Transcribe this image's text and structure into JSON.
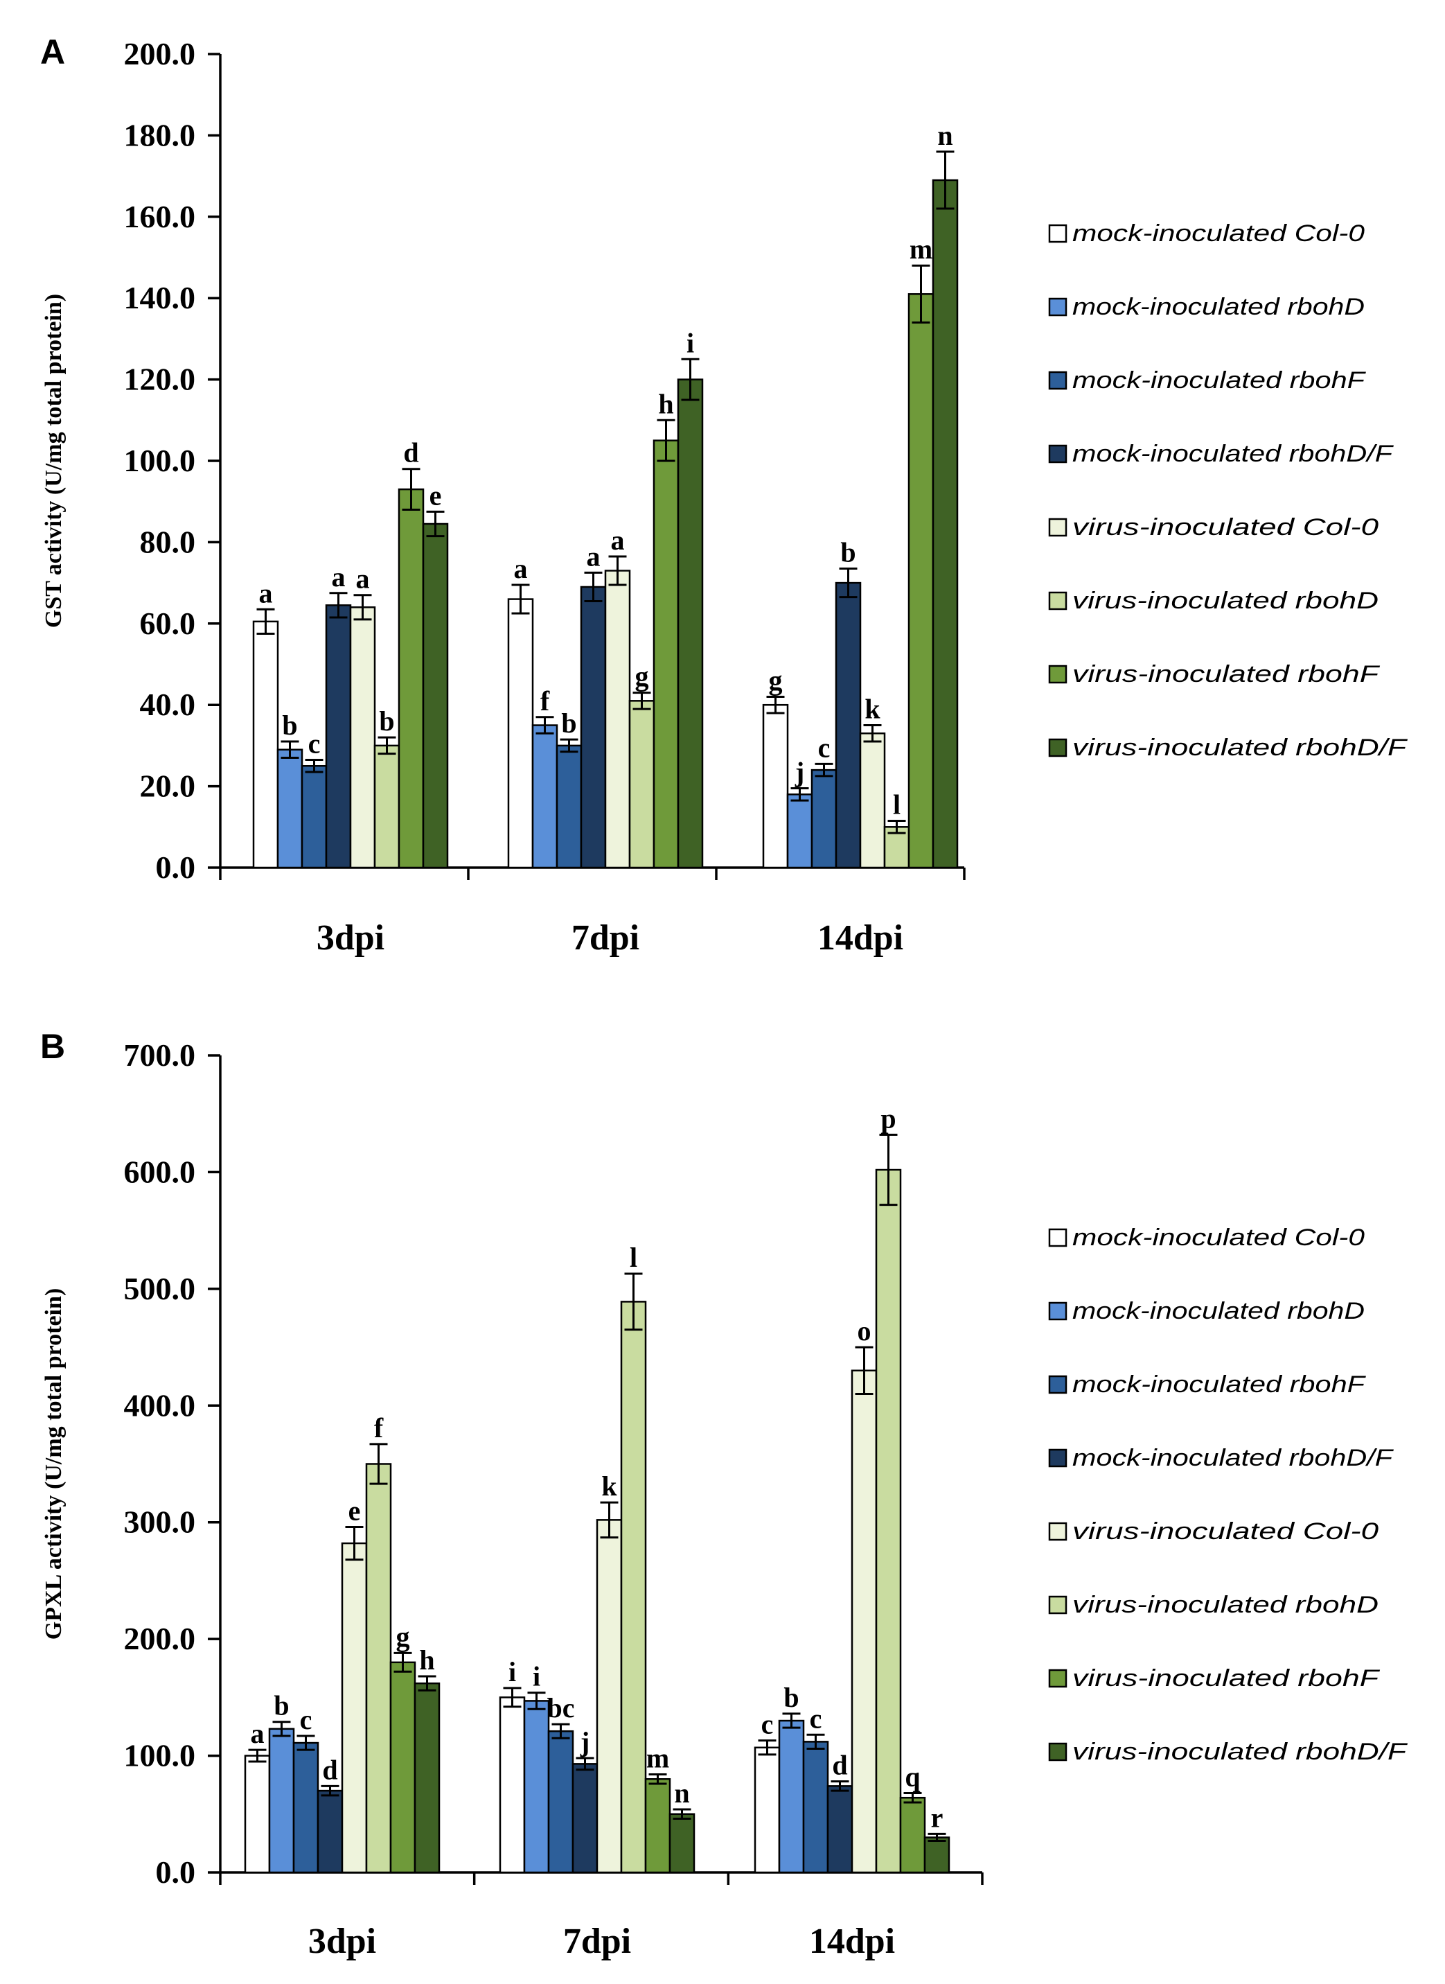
{
  "colors": [
    "#ffffff",
    "#5a8fd8",
    "#2d5f9a",
    "#1e3a5f",
    "#eef3dc",
    "#c9dca0",
    "#6f9a3a",
    "#3f6225"
  ],
  "chart_data": [
    {
      "panel": "A",
      "type": "bar",
      "ylabel": "GST activity (U/mg  total protein)",
      "ylim": [
        0,
        200
      ],
      "ytick_step": 20,
      "yticks": [
        "0.0",
        "20.0",
        "40.0",
        "60.0",
        "80.0",
        "100.0",
        "120.0",
        "140.0",
        "160.0",
        "180.0",
        "200.0"
      ],
      "categories": [
        "3dpi",
        "7dpi",
        "14dpi"
      ],
      "series": [
        {
          "name": "mock-inoculated Col-0",
          "values": [
            60.5,
            66,
            40
          ],
          "errors": [
            3,
            3.5,
            2
          ],
          "letters": [
            "a",
            "a",
            "g"
          ]
        },
        {
          "name": "mock-inoculated rbohD",
          "values": [
            29,
            35,
            18
          ],
          "errors": [
            2,
            2,
            1.5
          ],
          "letters": [
            "b",
            "f",
            "j"
          ]
        },
        {
          "name": "mock-inoculated rbohF",
          "values": [
            25,
            30,
            24
          ],
          "errors": [
            1.5,
            1.5,
            1.5
          ],
          "letters": [
            "c",
            "b",
            "c"
          ]
        },
        {
          "name": "mock-inoculated rbohD/F",
          "values": [
            64.5,
            69,
            70
          ],
          "errors": [
            3,
            3.5,
            3.5
          ],
          "letters": [
            "a",
            "a",
            "b"
          ]
        },
        {
          "name": "virus-inoculated Col-0",
          "values": [
            64,
            73,
            33
          ],
          "errors": [
            3,
            3.5,
            2
          ],
          "letters": [
            "a",
            "a",
            "k"
          ]
        },
        {
          "name": "virus-inoculated rbohD",
          "values": [
            30,
            41,
            10
          ],
          "errors": [
            2,
            2,
            1.5
          ],
          "letters": [
            "b",
            "g",
            "l"
          ]
        },
        {
          "name": "virus-inoculated rbohF",
          "values": [
            93,
            105,
            141
          ],
          "errors": [
            5,
            5,
            7
          ],
          "letters": [
            "d",
            "h",
            "m"
          ]
        },
        {
          "name": "virus-inoculated rbohD/F",
          "values": [
            84.5,
            120,
            169
          ],
          "errors": [
            3,
            5,
            7
          ],
          "letters": [
            "e",
            "i",
            "n"
          ]
        }
      ]
    },
    {
      "panel": "B",
      "type": "bar",
      "ylabel": "GPXL activity (U/mg  total protein)",
      "ylim": [
        0,
        700
      ],
      "ytick_step": 100,
      "yticks": [
        "0.0",
        "100.0",
        "200.0",
        "300.0",
        "400.0",
        "500.0",
        "600.0",
        "700.0"
      ],
      "categories": [
        "3dpi",
        "7dpi",
        "14dpi"
      ],
      "series": [
        {
          "name": "mock-inoculated Col-0",
          "values": [
            100,
            150,
            107
          ],
          "errors": [
            5,
            8,
            6
          ],
          "letters": [
            "a",
            "i",
            "c"
          ]
        },
        {
          "name": "mock-inoculated rbohD",
          "values": [
            123,
            147,
            130
          ],
          "errors": [
            6,
            7,
            6
          ],
          "letters": [
            "b",
            "i",
            "b"
          ]
        },
        {
          "name": "mock-inoculated rbohF",
          "values": [
            111,
            121,
            112
          ],
          "errors": [
            6,
            6,
            6
          ],
          "letters": [
            "c",
            "bc",
            "c"
          ]
        },
        {
          "name": "mock-inoculated rbohD/F",
          "values": [
            70,
            93,
            74
          ],
          "errors": [
            4,
            5,
            4
          ],
          "letters": [
            "d",
            "j",
            "d"
          ]
        },
        {
          "name": "virus-inoculated Col-0",
          "values": [
            282,
            302,
            430
          ],
          "errors": [
            14,
            15,
            20
          ],
          "letters": [
            "e",
            "k",
            "o"
          ]
        },
        {
          "name": "virus-inoculated rbohD",
          "values": [
            350,
            489,
            602
          ],
          "errors": [
            17,
            24,
            30
          ],
          "letters": [
            "f",
            "l",
            "p"
          ]
        },
        {
          "name": "virus-inoculated rbohF",
          "values": [
            180,
            80,
            64
          ],
          "errors": [
            8,
            4,
            4
          ],
          "letters": [
            "g",
            "m",
            "q"
          ]
        },
        {
          "name": "virus-inoculated rbohD/F",
          "values": [
            162,
            50,
            30
          ],
          "errors": [
            6,
            4,
            3
          ],
          "letters": [
            "h",
            "n",
            "r"
          ]
        }
      ]
    }
  ]
}
